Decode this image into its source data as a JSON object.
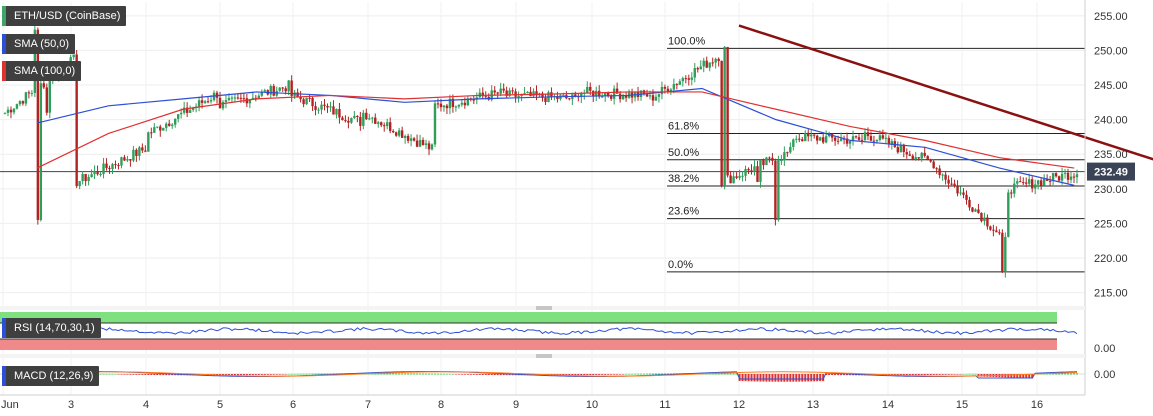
{
  "legend": {
    "symbol": "ETH/USD (CoinBase)",
    "sma50": "SMA (50,0)",
    "sma100": "SMA (100,0)",
    "rsi": "RSI (14,70,30,1)",
    "macd": "MACD (12,26,9)"
  },
  "colors": {
    "symbol_swatch": "#3fa66a",
    "sma50": "#2c4fd6",
    "sma100": "#e03131",
    "up_candle": "#2e9e5a",
    "down_candle": "#b22222",
    "trendline": "#8b1010",
    "price_tag": "#3a4456"
  },
  "last_price": "232.49",
  "chart_data": [
    {
      "type": "candlestick",
      "title": "ETH/USD (CoinBase)",
      "price_axis": {
        "ticks": [
          "255.00",
          "250.00",
          "245.00",
          "240.00",
          "235.00",
          "230.00",
          "225.00",
          "220.00",
          "215.00"
        ],
        "range": [
          213.5,
          257
        ]
      },
      "time_axis": {
        "ticks": [
          "Jun",
          "3",
          "4",
          "5",
          "6",
          "7",
          "8",
          "9",
          "10",
          "11",
          "12",
          "13",
          "14",
          "15",
          "16"
        ]
      },
      "days": [
        {
          "day": "Jun",
          "open": 241.0,
          "close": 249.0
        },
        {
          "day": "3",
          "open": 231.0,
          "close": 236.0
        },
        {
          "day": "4",
          "open": 238.0,
          "close": 244.0
        },
        {
          "day": "5",
          "open": 242.0,
          "close": 245.0
        },
        {
          "day": "6",
          "open": 243.5,
          "close": 239.5
        },
        {
          "day": "7",
          "open": 241.0,
          "close": 235.5
        },
        {
          "day": "8",
          "open": 242.0,
          "close": 244.0
        },
        {
          "day": "9",
          "open": 243.5,
          "close": 243.0
        },
        {
          "day": "10",
          "open": 244.0,
          "close": 243.5
        },
        {
          "day": "11",
          "open": 243.0,
          "close": 249.5
        },
        {
          "day": "12",
          "open": 231.0,
          "close": 235.5
        },
        {
          "day": "13",
          "open": 237.5,
          "close": 237.0
        },
        {
          "day": "14",
          "open": 238.0,
          "close": 233.5
        },
        {
          "day": "15",
          "open": 233.0,
          "close": 222.0
        },
        {
          "day": "16",
          "open": 230.0,
          "close": 232.49
        }
      ],
      "series": [
        {
          "name": "SMA (50,0)",
          "values": [
            239.5,
            242.0,
            243.0,
            244.0,
            243.5,
            242.5,
            243.0,
            243.3,
            243.5,
            244.5,
            240.0,
            237.0,
            236.0,
            233.0,
            230.5
          ]
        },
        {
          "name": "SMA (100,0)",
          "values": [
            233.0,
            238.0,
            241.5,
            243.0,
            243.5,
            243.0,
            243.5,
            243.7,
            244.0,
            244.0,
            241.5,
            239.0,
            237.0,
            234.5,
            233.0
          ]
        }
      ],
      "fibonacci": [
        {
          "label": "100.0%",
          "price": 250.3
        },
        {
          "label": "61.8%",
          "price": 238.0
        },
        {
          "label": "50.0%",
          "price": 234.2
        },
        {
          "label": "38.2%",
          "price": 230.4
        },
        {
          "label": "23.6%",
          "price": 225.7
        },
        {
          "label": "0.0%",
          "price": 218.0
        }
      ],
      "trendline": {
        "from": {
          "day": "10.0",
          "price": 253.6
        },
        "to": {
          "day": "16.5",
          "price": 231.0
        }
      },
      "horizontal_line": {
        "price": 232.49
      }
    },
    {
      "type": "line",
      "title": "RSI (14,70,30,1)",
      "y_ticks": [
        "0.00"
      ],
      "bands": {
        "overbought": 70,
        "oversold": 30
      }
    },
    {
      "type": "histogram",
      "title": "MACD (12,26,9)",
      "y_ticks": [
        "0.00"
      ]
    }
  ]
}
